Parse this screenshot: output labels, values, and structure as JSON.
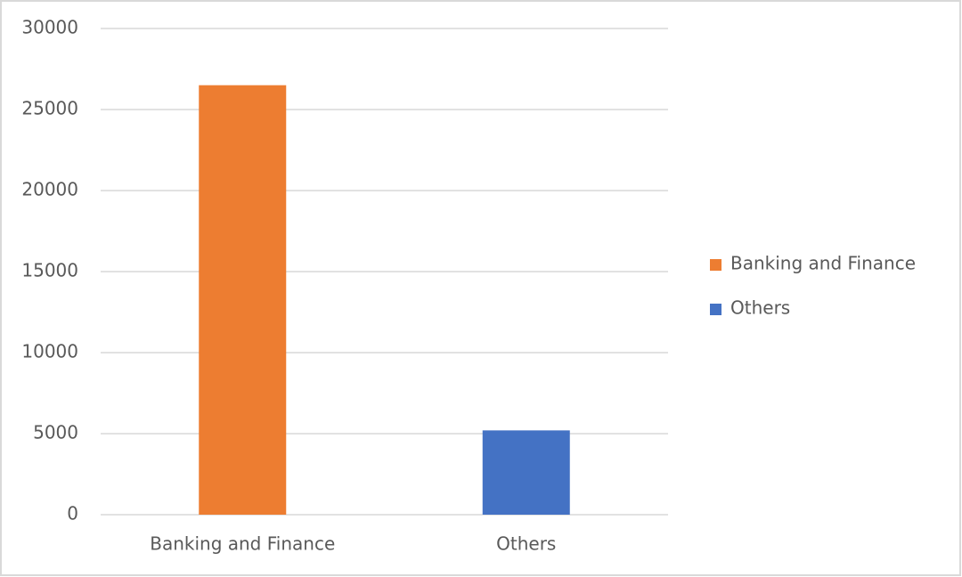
{
  "chart_data": {
    "type": "bar",
    "categories": [
      "Banking and Finance",
      "Others"
    ],
    "values": [
      26500,
      5200
    ],
    "colors": [
      "#ed7d31",
      "#4472c4"
    ],
    "ylim": [
      0,
      30000
    ],
    "yticks": [
      0,
      5000,
      10000,
      15000,
      20000,
      25000,
      30000
    ],
    "grid": true,
    "legend": "right"
  }
}
